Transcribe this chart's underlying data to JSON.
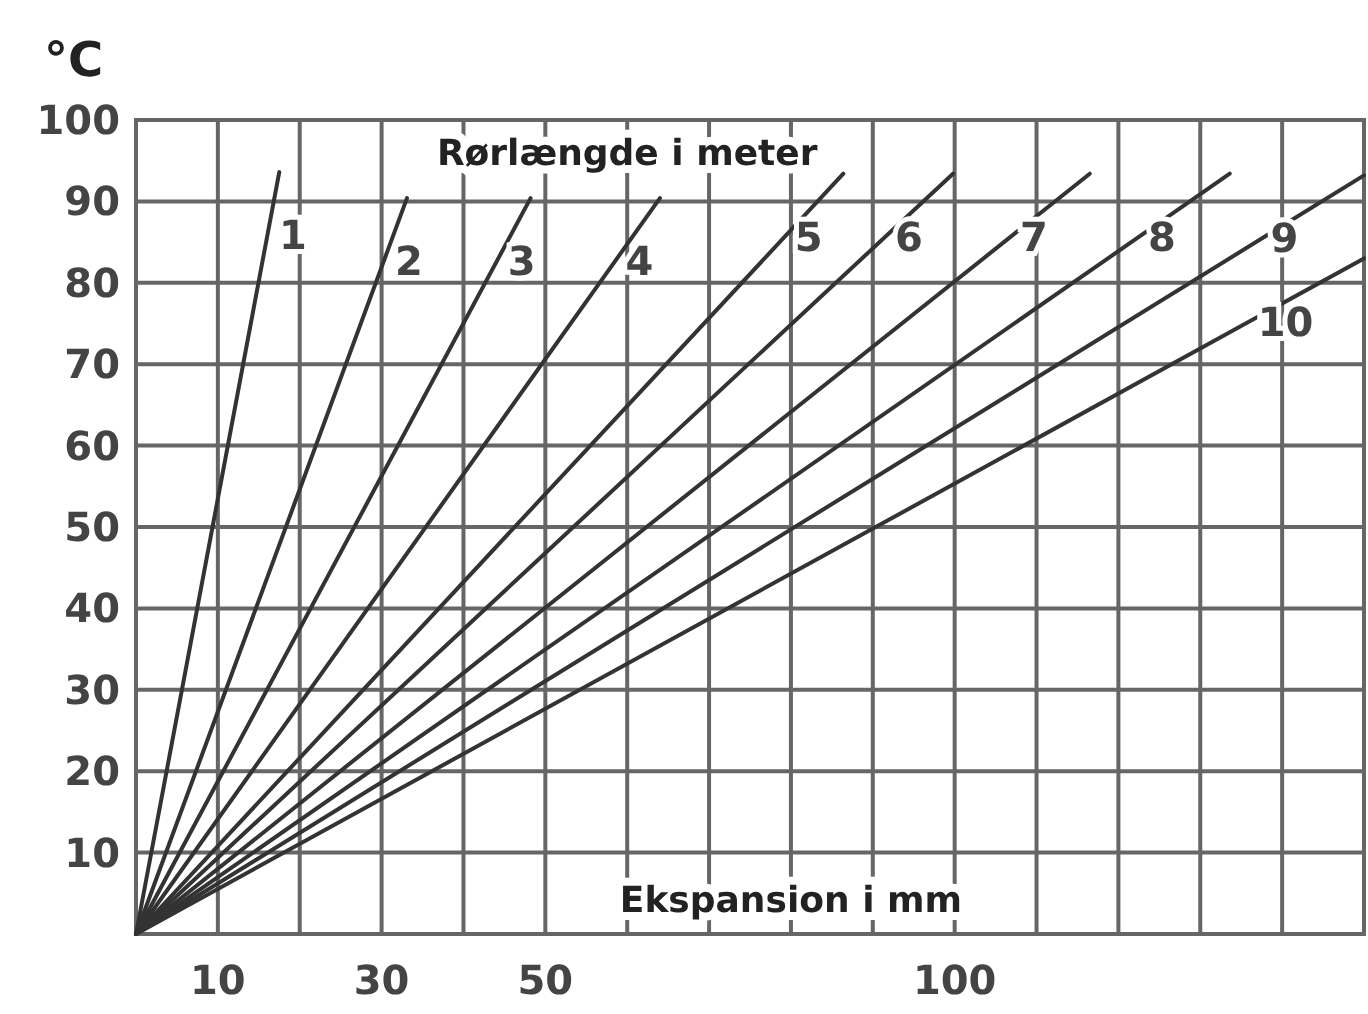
{
  "chart_data": {
    "type": "line",
    "xlabel": "Ekspansion i mm",
    "ylabel": "°C",
    "annotations": [
      "Rørlængde i meter"
    ],
    "xlim": [
      0,
      150
    ],
    "ylim": [
      0,
      100
    ],
    "xticks": [
      {
        "value": 0,
        "label": null
      },
      10,
      {
        "value": 20,
        "label": null
      },
      30,
      {
        "value": 40,
        "label": null
      },
      50,
      {
        "value": 60,
        "label": null
      },
      {
        "value": 70,
        "label": null
      },
      {
        "value": 80,
        "label": null
      },
      {
        "value": 90,
        "label": null
      },
      100,
      {
        "value": 110,
        "label": null
      },
      {
        "value": 120,
        "label": null
      },
      {
        "value": 130,
        "label": null
      },
      {
        "value": 140,
        "label": null
      }
    ],
    "yticks": [
      10,
      20,
      30,
      40,
      50,
      60,
      70,
      80,
      90,
      100
    ],
    "grid": true,
    "series": [
      {
        "name": "1",
        "color": "#333333",
        "x": [
          0,
          17.5
        ],
        "values": [
          0,
          93.6
        ]
      },
      {
        "name": "2",
        "color": "#333333",
        "x": [
          0,
          33.1
        ],
        "values": [
          0,
          90.4
        ]
      },
      {
        "name": "3",
        "color": "#333333",
        "x": [
          0,
          48.2
        ],
        "values": [
          0,
          90.4
        ]
      },
      {
        "name": "4",
        "color": "#333333",
        "x": [
          0,
          64
        ],
        "values": [
          0,
          90.4
        ]
      },
      {
        "name": "5",
        "color": "#333333",
        "x": [
          0,
          86.4
        ],
        "values": [
          0,
          93.4
        ]
      },
      {
        "name": "6",
        "color": "#333333",
        "x": [
          0,
          99.8
        ],
        "values": [
          0,
          93.4
        ]
      },
      {
        "name": "7",
        "color": "#333333",
        "x": [
          0,
          116.5
        ],
        "values": [
          0,
          93.4
        ]
      },
      {
        "name": "8",
        "color": "#333333",
        "x": [
          0,
          133.6
        ],
        "values": [
          0,
          93.4
        ]
      },
      {
        "name": "9",
        "color": "#333333",
        "x": [
          0,
          150
        ],
        "values": [
          0,
          93.2
        ]
      },
      {
        "name": "10",
        "color": "#333333",
        "x": [
          0,
          150
        ],
        "values": [
          0,
          83
        ]
      }
    ]
  }
}
